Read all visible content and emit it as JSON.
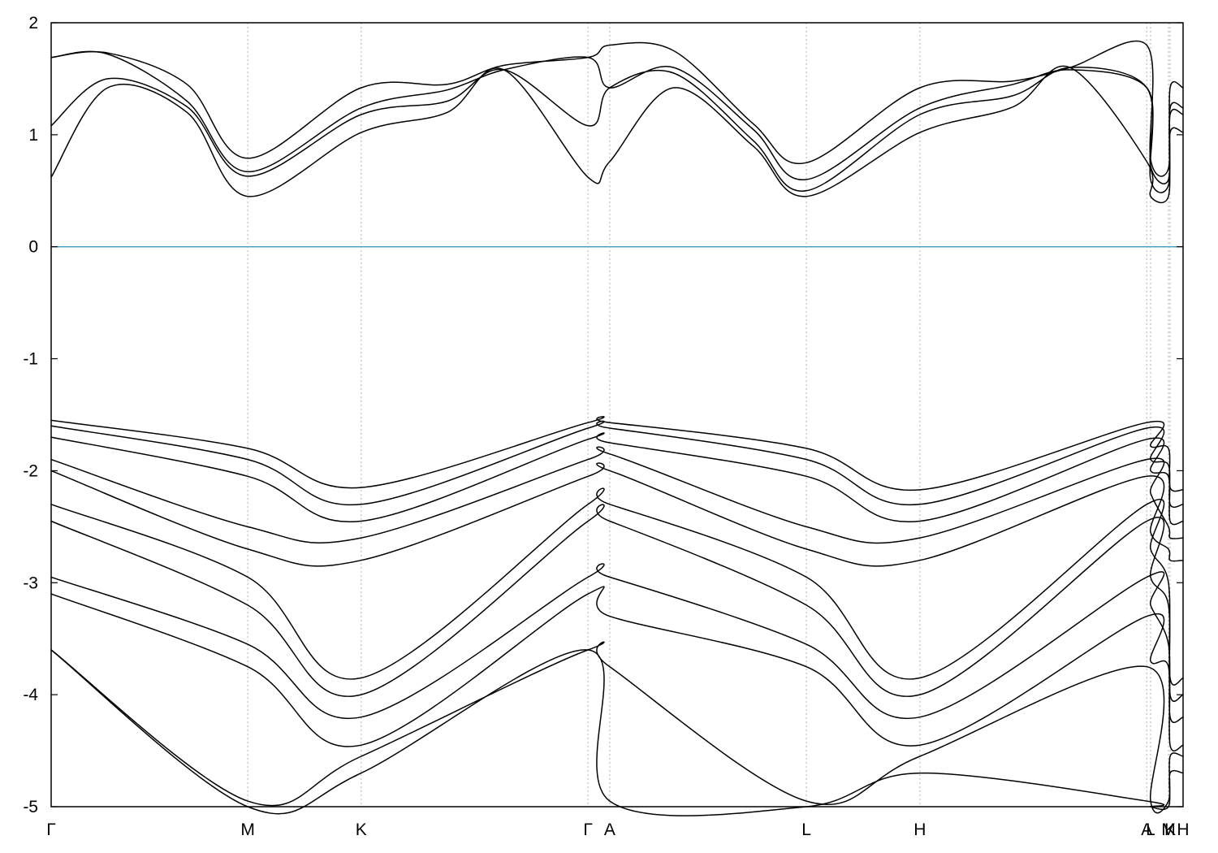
{
  "chart_data": {
    "type": "line",
    "title": "",
    "xlabel": "",
    "ylabel": "",
    "ylim": [
      -5,
      2
    ],
    "xlim": [
      0,
      1
    ],
    "y_ticks": [
      {
        "value": 2,
        "label": "2"
      },
      {
        "value": 1,
        "label": "1"
      },
      {
        "value": 0,
        "label": "0"
      },
      {
        "value": -1,
        "label": "-1"
      },
      {
        "value": -2,
        "label": "-2"
      },
      {
        "value": -3,
        "label": "-3"
      },
      {
        "value": -4,
        "label": "-4"
      },
      {
        "value": -5,
        "label": "-5"
      }
    ],
    "x_ticks": [
      {
        "value": 0.0,
        "label": "Γ"
      },
      {
        "value": 0.1737,
        "label": "M"
      },
      {
        "value": 0.2739,
        "label": "K"
      },
      {
        "value": 0.4743,
        "label": "Γ"
      },
      {
        "value": 0.4935,
        "label": "A"
      },
      {
        "value": 0.6672,
        "label": "L"
      },
      {
        "value": 0.7675,
        "label": "H"
      },
      {
        "value": 0.9679,
        "label": "A"
      },
      {
        "value": 0.9713,
        "label": "L"
      },
      {
        "value": 0.9871,
        "label": "M"
      },
      {
        "value": 0.9885,
        "label": "K"
      },
      {
        "value": 1.0,
        "label": "H"
      }
    ],
    "grid": "vertical dashed at high-symmetry points",
    "fermi_level": {
      "value": 0,
      "color": "#4ba3c7"
    },
    "band_color": "#000000",
    "series": [
      {
        "x": [
          0,
          0.05,
          0.12,
          0.1737,
          0.2739,
          0.35,
          0.4,
          0.4743,
          0.4935,
          0.55,
          0.62,
          0.6672,
          0.7675,
          0.85,
          0.9,
          0.9679,
          0.9713,
          0.9871,
          0.9885,
          1.0
        ],
        "y": [
          1.69,
          1.73,
          1.45,
          0.79,
          1.42,
          1.45,
          1.62,
          1.69,
          1.8,
          1.75,
          1.1,
          0.75,
          1.42,
          1.48,
          1.6,
          1.8,
          0.78,
          0.7,
          1.42,
          1.42
        ]
      },
      {
        "x": [
          0,
          0.05,
          0.12,
          0.1737,
          0.2739,
          0.35,
          0.4,
          0.4743,
          0.4935,
          0.55,
          0.62,
          0.6672,
          0.7675,
          0.85,
          0.9,
          0.9679,
          0.9713,
          0.9871,
          0.9885,
          1.0
        ],
        "y": [
          1.69,
          1.72,
          1.3,
          0.67,
          1.24,
          1.4,
          1.58,
          1.69,
          1.42,
          1.6,
          1.05,
          0.6,
          1.24,
          1.45,
          1.58,
          1.42,
          0.72,
          0.6,
          1.24,
          1.24
        ]
      },
      {
        "x": [
          0,
          0.05,
          0.12,
          0.1737,
          0.2739,
          0.35,
          0.4,
          0.4743,
          0.4935,
          0.55,
          0.62,
          0.6672,
          0.7675,
          0.85,
          0.9,
          0.9679,
          0.9713,
          0.9871,
          0.9885,
          1.0
        ],
        "y": [
          1.08,
          1.5,
          1.25,
          0.63,
          1.18,
          1.3,
          1.58,
          1.08,
          1.42,
          1.55,
          0.95,
          0.5,
          1.18,
          1.35,
          1.6,
          1.42,
          0.6,
          0.55,
          1.18,
          1.18
        ]
      },
      {
        "x": [
          0,
          0.05,
          0.12,
          0.1737,
          0.2739,
          0.35,
          0.4,
          0.4743,
          0.4935,
          0.55,
          0.62,
          0.6672,
          0.7675,
          0.85,
          0.9,
          0.9679,
          0.9713,
          0.9871,
          0.9885,
          1.0
        ],
        "y": [
          0.62,
          1.42,
          1.2,
          0.45,
          1.02,
          1.2,
          1.58,
          0.62,
          0.76,
          1.42,
          0.9,
          0.45,
          1.02,
          1.25,
          1.6,
          0.76,
          0.45,
          0.45,
          1.02,
          1.02
        ]
      },
      {
        "x": [
          0,
          0.1737,
          0.2739,
          0.4743,
          0.4935,
          0.6672,
          0.7675,
          0.9679,
          0.9713,
          0.9871,
          0.9885,
          1.0
        ],
        "y": [
          -1.55,
          -1.8,
          -2.15,
          -1.57,
          -1.57,
          -1.8,
          -2.17,
          -1.57,
          -1.78,
          -1.8,
          -2.15,
          -2.17
        ]
      },
      {
        "x": [
          0,
          0.1737,
          0.2739,
          0.4743,
          0.4935,
          0.6672,
          0.7675,
          0.9679,
          0.9713,
          0.9871,
          0.9885,
          1.0
        ],
        "y": [
          -1.6,
          -1.9,
          -2.3,
          -1.62,
          -1.62,
          -1.9,
          -2.3,
          -1.62,
          -1.9,
          -1.95,
          -2.3,
          -2.3
        ]
      },
      {
        "x": [
          0,
          0.1737,
          0.2739,
          0.4743,
          0.4935,
          0.6672,
          0.7675,
          0.9679,
          0.9713,
          0.9871,
          0.9885,
          1.0
        ],
        "y": [
          -1.7,
          -2.05,
          -2.45,
          -1.72,
          -1.75,
          -2.05,
          -2.45,
          -1.72,
          -2.0,
          -2.05,
          -2.45,
          -2.45
        ]
      },
      {
        "x": [
          0,
          0.1737,
          0.2739,
          0.4743,
          0.4935,
          0.6672,
          0.7675,
          0.9679,
          0.9713,
          0.9871,
          0.9885,
          1.0
        ],
        "y": [
          -1.9,
          -2.5,
          -2.6,
          -1.9,
          -1.85,
          -2.5,
          -2.6,
          -1.9,
          -2.2,
          -2.5,
          -2.6,
          -2.6
        ]
      },
      {
        "x": [
          0,
          0.1737,
          0.2739,
          0.4743,
          0.4935,
          0.6672,
          0.7675,
          0.9679,
          0.9713,
          0.9871,
          0.9885,
          1.0
        ],
        "y": [
          -2.0,
          -2.7,
          -2.8,
          -2.05,
          -2.0,
          -2.7,
          -2.8,
          -2.05,
          -2.55,
          -2.7,
          -2.8,
          -2.8
        ]
      },
      {
        "x": [
          0,
          0.1737,
          0.2739,
          0.4743,
          0.4935,
          0.6672,
          0.7675,
          0.9679,
          0.9713,
          0.9871,
          0.9885,
          1.0
        ],
        "y": [
          -2.3,
          -2.95,
          -3.85,
          -2.3,
          -2.3,
          -2.95,
          -3.85,
          -2.3,
          -2.7,
          -3.0,
          -3.85,
          -3.85
        ]
      },
      {
        "x": [
          0,
          0.1737,
          0.2739,
          0.4743,
          0.4935,
          0.6672,
          0.7675,
          0.9679,
          0.9713,
          0.9871,
          0.9885,
          1.0
        ],
        "y": [
          -2.45,
          -3.2,
          -4.0,
          -2.45,
          -2.45,
          -3.2,
          -4.0,
          -2.45,
          -2.95,
          -3.2,
          -4.0,
          -4.0
        ]
      },
      {
        "x": [
          0,
          0.1737,
          0.2739,
          0.4743,
          0.4935,
          0.6672,
          0.7675,
          0.9679,
          0.9713,
          0.9871,
          0.9885,
          1.0
        ],
        "y": [
          -2.95,
          -3.55,
          -4.2,
          -2.95,
          -2.95,
          -3.55,
          -4.2,
          -2.95,
          -3.2,
          -3.55,
          -4.2,
          -4.2
        ]
      },
      {
        "x": [
          0,
          0.1737,
          0.2739,
          0.4743,
          0.4935,
          0.6672,
          0.7675,
          0.9679,
          0.9713,
          0.9871,
          0.9885,
          1.0
        ],
        "y": [
          -3.1,
          -3.75,
          -4.45,
          -3.1,
          -3.3,
          -3.75,
          -4.45,
          -3.3,
          -3.7,
          -3.75,
          -4.45,
          -4.45
        ]
      },
      {
        "x": [
          0,
          0.1737,
          0.2739,
          0.4743,
          0.4935,
          0.6672,
          0.7675,
          0.9679,
          0.9713,
          0.9871,
          0.9885,
          1.0
        ],
        "y": [
          -3.6,
          -4.95,
          -4.55,
          -3.6,
          -3.75,
          -4.95,
          -4.55,
          -3.75,
          -4.95,
          -4.95,
          -4.55,
          -4.55
        ]
      },
      {
        "x": [
          0,
          0.1737,
          0.2739,
          0.4743,
          0.4935,
          0.6672,
          0.7675,
          0.9679,
          0.9713,
          0.9871,
          0.9885,
          1.0
        ],
        "y": [
          -3.6,
          -5.0,
          -4.7,
          -3.6,
          -4.95,
          -5.0,
          -4.7,
          -4.95,
          -5.0,
          -5.0,
          -4.7,
          -4.7
        ]
      }
    ]
  }
}
